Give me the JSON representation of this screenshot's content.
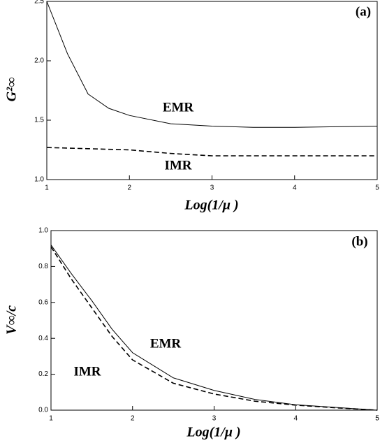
{
  "chart_data": [
    {
      "type": "line",
      "x_label": "Log(1/μ )",
      "y_label": "G²∞",
      "annotations": [
        "(a)",
        "EMR",
        "IMR"
      ],
      "x": [
        1,
        1.25,
        1.5,
        1.75,
        2,
        2.5,
        3,
        3.5,
        4,
        4.5,
        5
      ],
      "series": [
        {
          "name": "EMR",
          "color": "#000000",
          "line_style": "solid",
          "values": [
            2.5,
            2.06,
            1.72,
            1.6,
            1.54,
            1.47,
            1.45,
            1.44,
            1.44,
            1.445,
            1.45
          ]
        },
        {
          "name": "IMR",
          "color": "#000000",
          "line_style": "dashed",
          "values": [
            1.27,
            1.265,
            1.26,
            1.255,
            1.25,
            1.22,
            1.2,
            1.2,
            1.2,
            1.2,
            1.2
          ]
        }
      ],
      "xlim": [
        1,
        5
      ],
      "ylim": [
        1,
        2.5
      ],
      "xticks": [
        1,
        2,
        3,
        4,
        5
      ],
      "yticks": [
        {
          "value": 1,
          "label": "1.0"
        },
        1.5,
        {
          "value": 2,
          "label": "2.0"
        },
        2.5
      ]
    },
    {
      "type": "line",
      "x_label": "Log(1/μ )",
      "y_label": "V∞/c",
      "annotations": [
        "(b)",
        "EMR",
        "IMR"
      ],
      "x": [
        1,
        1.25,
        1.5,
        1.75,
        2,
        2.5,
        3,
        3.5,
        4,
        4.5,
        5
      ],
      "series": [
        {
          "name": "EMR",
          "color": "#000000",
          "line_style": "solid",
          "values": [
            0.92,
            0.76,
            0.61,
            0.45,
            0.32,
            0.18,
            0.11,
            0.06,
            0.03,
            0.015,
            0
          ]
        },
        {
          "name": "IMR",
          "color": "#000000",
          "line_style": "dashed",
          "values": [
            0.91,
            0.73,
            0.57,
            0.41,
            0.28,
            0.15,
            0.09,
            0.05,
            0.028,
            0.013,
            0
          ]
        }
      ],
      "xlim": [
        1,
        5
      ],
      "ylim": [
        0,
        1
      ],
      "xticks": [
        1,
        2,
        3,
        4,
        5
      ],
      "yticks": [
        {
          "value": 0,
          "label": "0.0"
        },
        0.2,
        0.4,
        0.6,
        0.8,
        {
          "value": 1,
          "label": "1.0"
        }
      ]
    }
  ]
}
